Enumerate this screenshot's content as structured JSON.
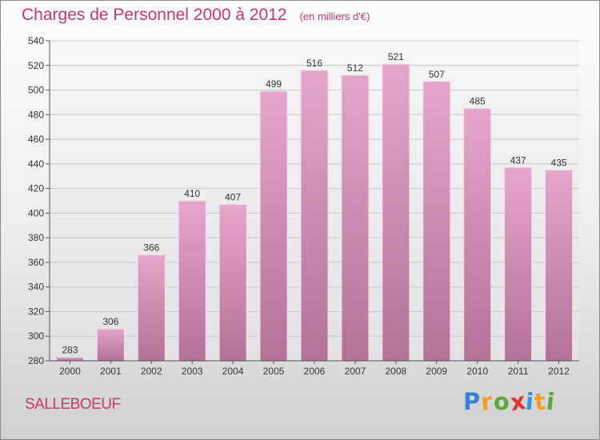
{
  "title": "Charges de Personnel 2000 à 2012",
  "subtitle": "(en milliers d'€)",
  "city": "SALLEBOEUF",
  "logo": {
    "letters": [
      "P",
      "r",
      "o",
      "x",
      "i",
      "t",
      "i"
    ],
    "colors": [
      "#3a7fd0",
      "#f0a020",
      "#5aa83a",
      "#e83030",
      "#2a9ad8",
      "#f0a020",
      "#5aa83a"
    ]
  },
  "colors": {
    "accent": "#c8386e",
    "bar_top": "#e4a6ca",
    "bar_bottom": "#b37196",
    "grid": "#c8c8c8"
  },
  "chart_data": {
    "type": "bar",
    "categories": [
      "2000",
      "2001",
      "2002",
      "2003",
      "2004",
      "2005",
      "2006",
      "2007",
      "2008",
      "2009",
      "2010",
      "2011",
      "2012"
    ],
    "values": [
      283,
      306,
      366,
      410,
      407,
      499,
      516,
      512,
      521,
      507,
      485,
      437,
      435
    ],
    "ylim": [
      280,
      540
    ],
    "yticks": [
      280,
      300,
      320,
      340,
      360,
      380,
      400,
      420,
      440,
      460,
      480,
      500,
      520,
      540
    ],
    "grid": true,
    "legend": "none"
  }
}
